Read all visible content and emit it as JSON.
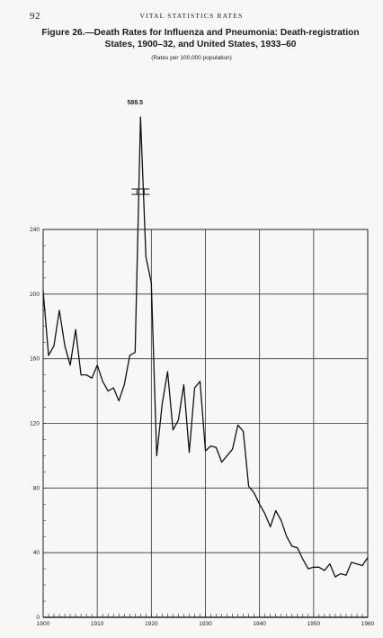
{
  "page": {
    "number": "92",
    "running_head": "VITAL STATISTICS RATES"
  },
  "chart_data": {
    "type": "line",
    "title": "Figure 26.—Death Rates for Influenza and Pneumonia: Death-registration States, 1900–32, and United States, 1933–60",
    "subtitle": "(Rates per 100,000 population)",
    "xlabel": "",
    "ylabel": "",
    "xlim": [
      1900,
      1960
    ],
    "ylim": [
      0,
      240
    ],
    "x_ticks": [
      1900,
      1910,
      1920,
      1930,
      1940,
      1950,
      1960
    ],
    "y_ticks": [
      0,
      40,
      80,
      120,
      160,
      200,
      240
    ],
    "grid": true,
    "axis_break": "above 240",
    "peak_label": "588.5",
    "peak_year": 1918,
    "series": [
      {
        "x": [
          1900,
          1901,
          1902,
          1903,
          1904,
          1905,
          1906,
          1907,
          1908,
          1909,
          1910,
          1911,
          1912,
          1913,
          1914,
          1915,
          1916,
          1917,
          1918,
          1919,
          1920,
          1921,
          1922,
          1923,
          1924,
          1925,
          1926,
          1927,
          1928,
          1929,
          1930,
          1931,
          1932,
          1933,
          1934,
          1935,
          1936,
          1937,
          1938,
          1939,
          1940,
          1941,
          1942,
          1943,
          1944,
          1945,
          1946,
          1947,
          1948,
          1949,
          1950,
          1951,
          1952,
          1953,
          1954,
          1955,
          1956,
          1957,
          1958,
          1959,
          1960
        ],
        "values": [
          202,
          162,
          168,
          190,
          168,
          156,
          178,
          150,
          150,
          148,
          156,
          146,
          140,
          142,
          134,
          144,
          162,
          164,
          588.5,
          223,
          207,
          100,
          132,
          152,
          116,
          122,
          144,
          102,
          142,
          146,
          103,
          106,
          105,
          96,
          100,
          104,
          119,
          115,
          81,
          77,
          70,
          64,
          56,
          66,
          60,
          50,
          44,
          43,
          36,
          30,
          31,
          31,
          29,
          33,
          25,
          27,
          26,
          34,
          33,
          32,
          37
        ]
      }
    ]
  }
}
